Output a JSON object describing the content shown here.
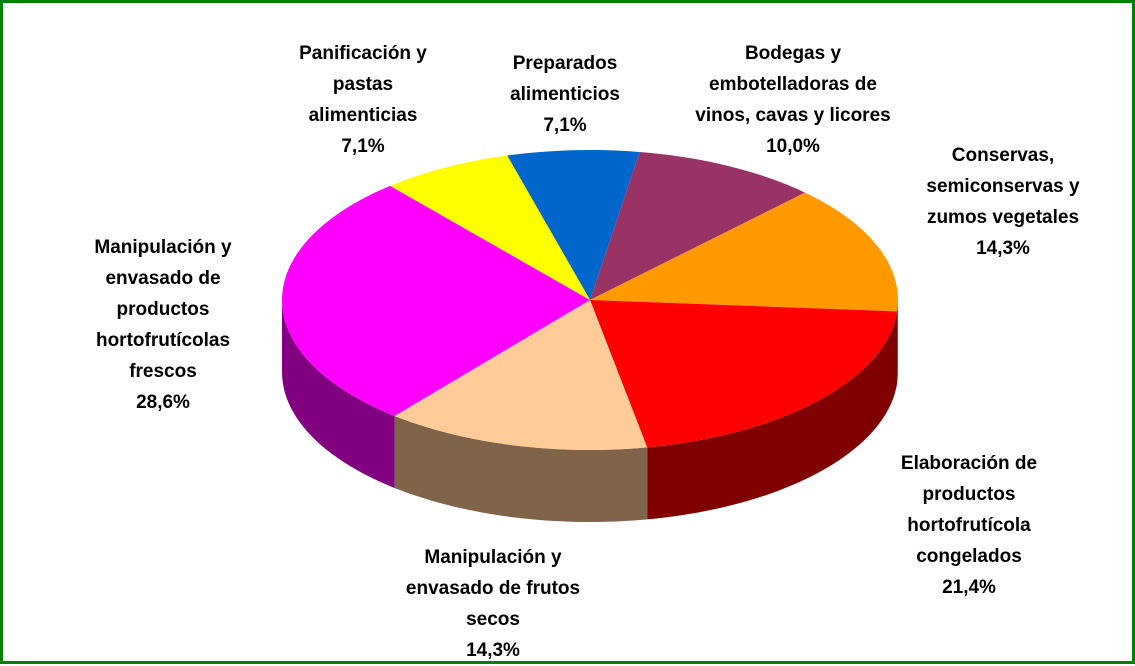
{
  "chart_data": {
    "type": "pie3d",
    "categories": [
      "Preparados alimenticios",
      "Bodegas y embotelladoras de vinos, cavas y licores",
      "Conservas, semiconservas y zumos vegetales",
      "Elaboración de productos hortofrutícola congelados",
      "Manipulación y envasado de frutos secos",
      "Manipulación y envasado de productos hortofrutícolas frescos",
      "Panificación y pastas alimenticias"
    ],
    "values": [
      7.1,
      10.0,
      14.3,
      21.4,
      14.3,
      28.6,
      7.1
    ],
    "value_labels": [
      "7,1%",
      "10,0%",
      "14,3%",
      "21,4%",
      "14,3%",
      "28,6%",
      "7,1%"
    ],
    "colors": [
      "#0066cc",
      "#993366",
      "#ff9900",
      "#ff0000",
      "#ffcc99",
      "#ff00ff",
      "#ffff00"
    ],
    "side_colors": [
      "#003366",
      "#4d1a33",
      "#804d00",
      "#800000",
      "#806449",
      "#800080",
      "#808000"
    ]
  }
}
